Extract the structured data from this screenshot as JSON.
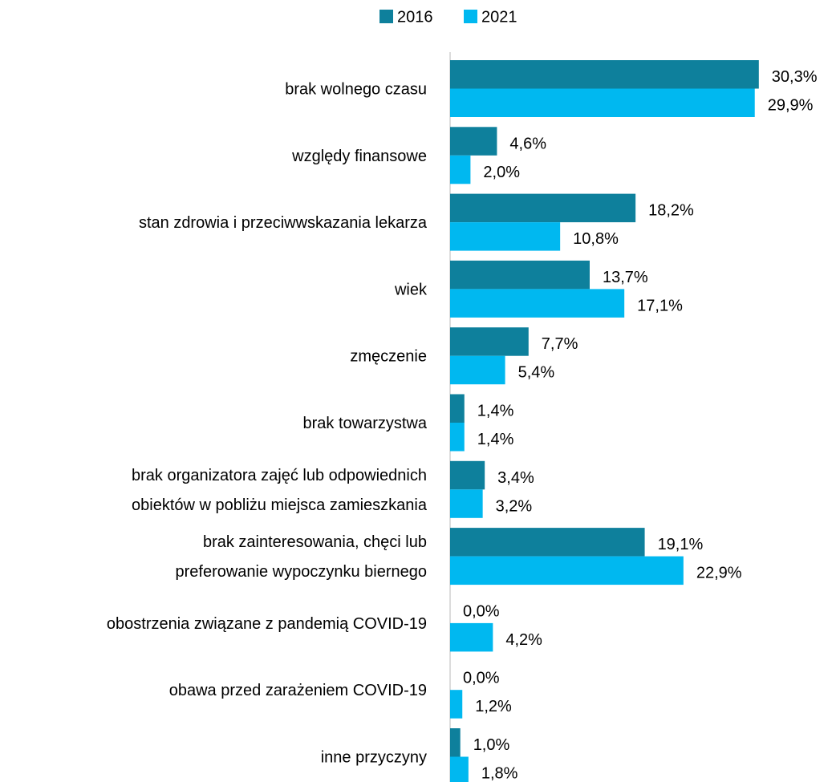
{
  "chart_data": {
    "type": "hbar",
    "categories": [
      "brak wolnego czasu",
      "względy finansowe",
      "stan zdrowia i przeciwwskazania lekarza",
      "wiek",
      "zmęczenie",
      "brak towarzystwa",
      "brak organizatora zajęć lub odpowiednich\nobiektów w pobliżu miejsca zamieszkania",
      "brak zainteresowania, chęci lub\npreferowanie wypoczynku biernego",
      "obostrzenia związane z pandemią COVID-19",
      "obawa przed zarażeniem COVID-19",
      "inne przyczyny"
    ],
    "series": [
      {
        "name": "2016",
        "color": "#0e809c",
        "values": [
          30.3,
          4.6,
          18.2,
          13.7,
          7.7,
          1.4,
          3.4,
          19.1,
          0.0,
          0.0,
          1.0
        ],
        "value_labels": [
          "30,3%",
          "4,6%",
          "18,2%",
          "13,7%",
          "7,7%",
          "1,4%",
          "3,4%",
          "19,1%",
          "0,0%",
          "0,0%",
          "1,0%"
        ]
      },
      {
        "name": "2021",
        "color": "#00b8f0",
        "values": [
          29.9,
          2.0,
          10.8,
          17.1,
          5.4,
          1.4,
          3.2,
          22.9,
          4.2,
          1.2,
          1.8
        ],
        "value_labels": [
          "29,9%",
          "2,0%",
          "10,8%",
          "17,1%",
          "5,4%",
          "1,4%",
          "3,2%",
          "22,9%",
          "4,2%",
          "1,2%",
          "1,8%"
        ]
      }
    ],
    "xlim": [
      0,
      35
    ],
    "legend": "top"
  }
}
